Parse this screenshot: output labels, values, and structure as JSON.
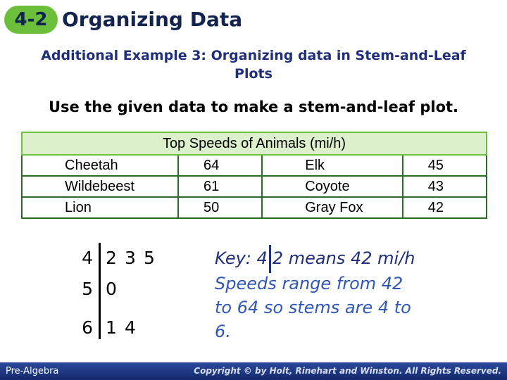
{
  "header": {
    "badge": "4-2",
    "title": "Organizing Data"
  },
  "subtitle": "Additional Example 3: Organizing data in Stem-and-Leaf Plots",
  "instruction": "Use the given data to make a stem-and-leaf plot.",
  "table": {
    "title": "Top Speeds of Animals (mi/h)",
    "rows": [
      [
        "Cheetah",
        64,
        "Elk",
        45
      ],
      [
        "Wildebeest",
        61,
        "Coyote",
        43
      ],
      [
        "Lion",
        50,
        "Gray Fox",
        42
      ]
    ]
  },
  "stem_plot": {
    "rows": [
      {
        "stem": 4,
        "leaves": [
          2,
          3,
          5
        ]
      },
      {
        "stem": 5,
        "leaves": [
          0
        ]
      },
      {
        "stem": 6,
        "leaves": [
          1,
          4
        ]
      }
    ]
  },
  "key": {
    "label": "Key:",
    "stem": 4,
    "leaf": 2,
    "meaning": "means 42 mi/h"
  },
  "note": "Speeds range from 42 to 64 so stems are 4 to 6.",
  "footer": {
    "course": "Pre-Algebra",
    "copyright": "Copyright © by Holt, Rinehart and Winston. All Rights Reserved."
  }
}
